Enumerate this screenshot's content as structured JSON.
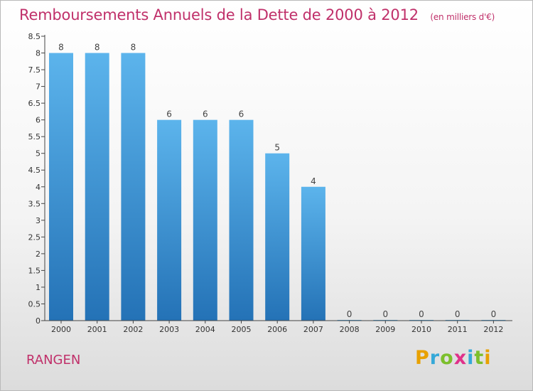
{
  "header": {
    "title": "Remboursements Annuels de la Dette de 2000 à 2012",
    "unit": "(en milliers d'€)"
  },
  "footer": {
    "commune": "RANGEN",
    "logo_text": "Proxiti",
    "logo_colors": [
      "#e8a100",
      "#35a8d8",
      "#7cbf2c",
      "#e0318a",
      "#35a8d8",
      "#7cbf2c",
      "#e8a100"
    ]
  },
  "colors": {
    "bar_light": "#5cb4ec",
    "bar_dark": "#2472b6",
    "title": "#c0306a",
    "axis": "#444444"
  },
  "chart_data": {
    "type": "bar",
    "categories": [
      "2000",
      "2001",
      "2002",
      "2003",
      "2004",
      "2005",
      "2006",
      "2007",
      "2008",
      "2009",
      "2010",
      "2011",
      "2012"
    ],
    "values": [
      8,
      8,
      8,
      6,
      6,
      6,
      5,
      4,
      0,
      0,
      0,
      0,
      0
    ],
    "data_labels": [
      "8",
      "8",
      "8",
      "6",
      "6",
      "6",
      "5",
      "4",
      "0",
      "0",
      "0",
      "0",
      "0"
    ],
    "title": "Remboursements Annuels de la Dette de 2000 à 2012",
    "xlabel": "",
    "ylabel": "",
    "ylim": [
      0,
      8.5
    ],
    "yticks": [
      0,
      0.5,
      1,
      1.5,
      2,
      2.5,
      3,
      3.5,
      4,
      4.5,
      5,
      5.5,
      6,
      6.5,
      7,
      7.5,
      8,
      8.5
    ],
    "ytick_labels": [
      "0",
      "0.5",
      "1",
      "1.5",
      "2",
      "2.5",
      "3",
      "3.5",
      "4",
      "4.5",
      "5",
      "5.5",
      "6",
      "6.5",
      "7",
      "7.5",
      "8",
      "8.5"
    ],
    "grid": false,
    "legend": "none"
  }
}
